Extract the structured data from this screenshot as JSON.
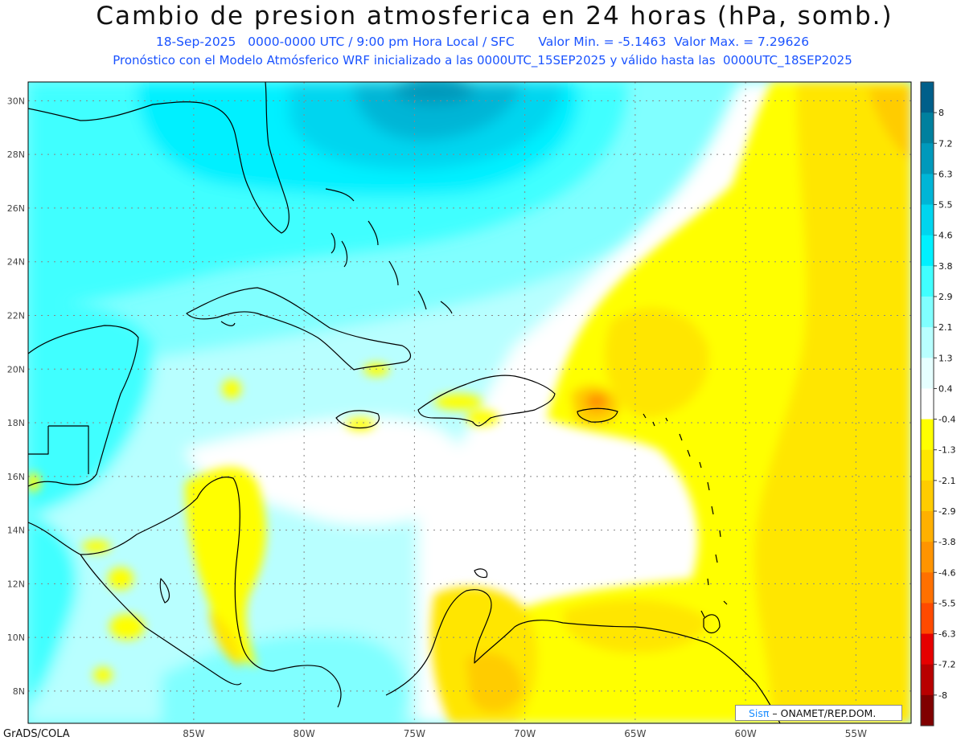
{
  "header": {
    "title": "Cambio de presion atmosferica en 24 horas (hPa, somb.)",
    "subtitle_1": "18-Sep-2025   0000-0000 UTC / 9:00 pm Hora Local / SFC      Valor Min. = -5.1463  Valor Max. = 7.29626",
    "subtitle_2": "Pronóstico con el Modelo Atmósferico WRF inicializado a las 0000UTC_15SEP2025 y válido hasta las  0000UTC_18SEP2025"
  },
  "map": {
    "lon_range": [
      -92.5,
      -52.5
    ],
    "lat_range": [
      6.8,
      30.7
    ],
    "lon_ticks": [
      -85,
      -80,
      -75,
      -70,
      -65,
      -60,
      -55
    ],
    "lon_tick_labels": [
      "85W",
      "80W",
      "75W",
      "70W",
      "65W",
      "60W",
      "55W"
    ],
    "lat_ticks": [
      8,
      10,
      12,
      14,
      16,
      18,
      20,
      22,
      24,
      26,
      28,
      30
    ],
    "lat_tick_labels": [
      "8N",
      "10N",
      "12N",
      "14N",
      "16N",
      "18N",
      "20N",
      "22N",
      "24N",
      "26N",
      "28N",
      "30N"
    ],
    "grid": true
  },
  "colorbar": {
    "labels": [
      "8",
      "7.2",
      "6.3",
      "5.5",
      "4.6",
      "3.8",
      "2.9",
      "2.1",
      "1.3",
      "0.4",
      "-0.4",
      "-1.3",
      "-2.1",
      "-2.9",
      "-3.8",
      "-4.6",
      "-5.5",
      "-6.3",
      "-7.2",
      "-8"
    ],
    "colors": [
      "#005f8a",
      "#00809e",
      "#0099bb",
      "#00b5d6",
      "#00d5ef",
      "#00f0ff",
      "#40ffff",
      "#80ffff",
      "#b8ffff",
      "#e6ffff",
      "#ffffff",
      "#ffff00",
      "#ffe600",
      "#ffcc00",
      "#ffb000",
      "#ff9400",
      "#ff7000",
      "#ff4a00",
      "#e60000",
      "#b80000",
      "#800000"
    ]
  },
  "footer": {
    "credit": "GrADS/COLA",
    "brand_sis": "Sisπ",
    "brand_rest": " – ONAMET/REP.DOM."
  }
}
